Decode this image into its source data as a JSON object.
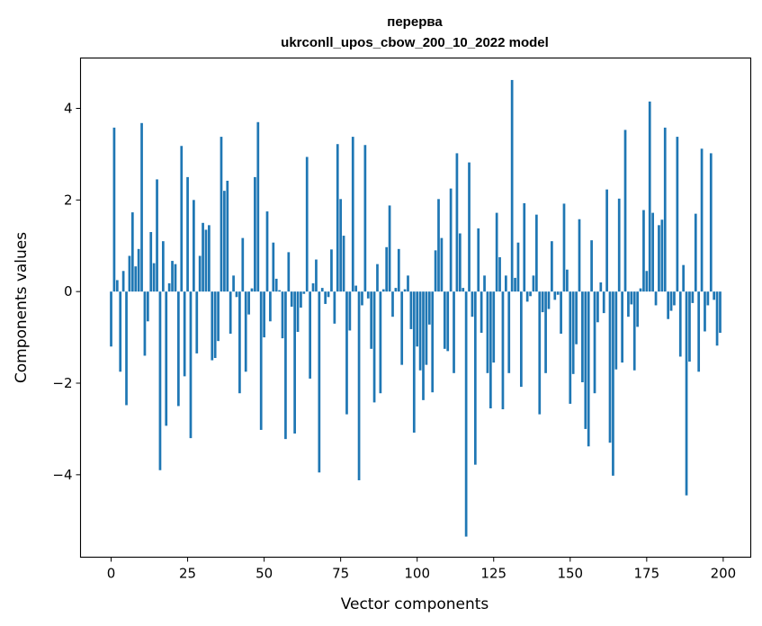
{
  "chart_data": {
    "type": "bar",
    "title_line1": "перерва",
    "title_line2": "ukrconll_upos_cbow_200_10_2022 model",
    "xlabel": "Vector components",
    "ylabel": "Components values",
    "xlim": [
      -10,
      209
    ],
    "ylim": [
      -5.8,
      5.1
    ],
    "xticks": [
      0,
      25,
      50,
      75,
      100,
      125,
      150,
      175,
      200
    ],
    "xtick_labels": [
      "0",
      "25",
      "50",
      "75",
      "100",
      "125",
      "150",
      "175",
      "200"
    ],
    "yticks": [
      -4,
      -2,
      0,
      2,
      4
    ],
    "ytick_labels": [
      "−4",
      "−2",
      "0",
      "2",
      "4"
    ],
    "bar_color": "#1f77b4",
    "grid": false,
    "legend": "none",
    "values": [
      -1.2,
      3.58,
      0.25,
      -1.75,
      0.45,
      -2.48,
      0.78,
      1.73,
      0.55,
      0.93,
      3.68,
      -1.4,
      -0.65,
      1.3,
      0.62,
      2.45,
      -3.9,
      1.1,
      -2.93,
      0.18,
      0.67,
      0.6,
      -2.5,
      3.18,
      -1.85,
      2.5,
      -3.2,
      2.0,
      -1.35,
      0.78,
      1.5,
      1.35,
      1.45,
      -1.5,
      -1.45,
      -1.08,
      3.38,
      2.2,
      2.42,
      -0.92,
      0.35,
      -0.12,
      -2.22,
      1.17,
      -1.75,
      -0.5,
      0.07,
      2.5,
      3.7,
      -3.02,
      -1.0,
      1.75,
      -0.65,
      1.07,
      0.28,
      0.03,
      -1.02,
      -3.22,
      0.86,
      -0.33,
      -3.1,
      -0.88,
      -0.35,
      -0.05,
      2.94,
      -1.9,
      0.18,
      0.7,
      -3.95,
      0.08,
      -0.27,
      -0.12,
      0.92,
      -0.7,
      3.22,
      2.02,
      1.22,
      -2.68,
      -0.85,
      3.38,
      0.13,
      -4.12,
      -0.3,
      3.2,
      -0.15,
      -1.25,
      -2.42,
      0.6,
      -2.22,
      0.05,
      0.97,
      1.88,
      -0.55,
      0.08,
      0.93,
      -1.6,
      0.05,
      0.35,
      -0.82,
      -3.08,
      -1.2,
      -1.72,
      -2.37,
      -1.6,
      -0.72,
      -2.2,
      0.9,
      2.02,
      1.17,
      -1.25,
      -1.3,
      2.25,
      -1.78,
      3.02,
      1.27,
      0.08,
      -5.35,
      2.82,
      -0.55,
      -3.78,
      1.38,
      -0.9,
      0.35,
      -1.78,
      -2.55,
      -1.55,
      1.72,
      0.75,
      -2.57,
      0.35,
      -1.78,
      4.62,
      0.3,
      1.07,
      -2.08,
      1.93,
      -0.22,
      -0.1,
      0.35,
      1.68,
      -2.68,
      -0.45,
      -1.78,
      -0.38,
      1.1,
      -0.18,
      -0.07,
      -0.92,
      1.92,
      0.48,
      -2.45,
      -1.8,
      -1.15,
      1.58,
      -1.98,
      -3.0,
      -3.38,
      1.12,
      -2.22,
      -0.67,
      0.2,
      -0.47,
      2.23,
      -3.3,
      -4.02,
      -1.7,
      2.03,
      -1.55,
      3.53,
      -0.55,
      -0.28,
      -1.72,
      -0.77,
      0.07,
      1.78,
      0.45,
      4.15,
      1.72,
      -0.3,
      1.45,
      1.57,
      3.58,
      -0.6,
      -0.42,
      -0.3,
      3.38,
      -1.42,
      0.58,
      -4.45,
      -1.53,
      -0.25,
      1.7,
      -1.75,
      3.12,
      -0.87,
      -0.3,
      3.02,
      -0.18,
      -1.18,
      -0.9
    ]
  }
}
